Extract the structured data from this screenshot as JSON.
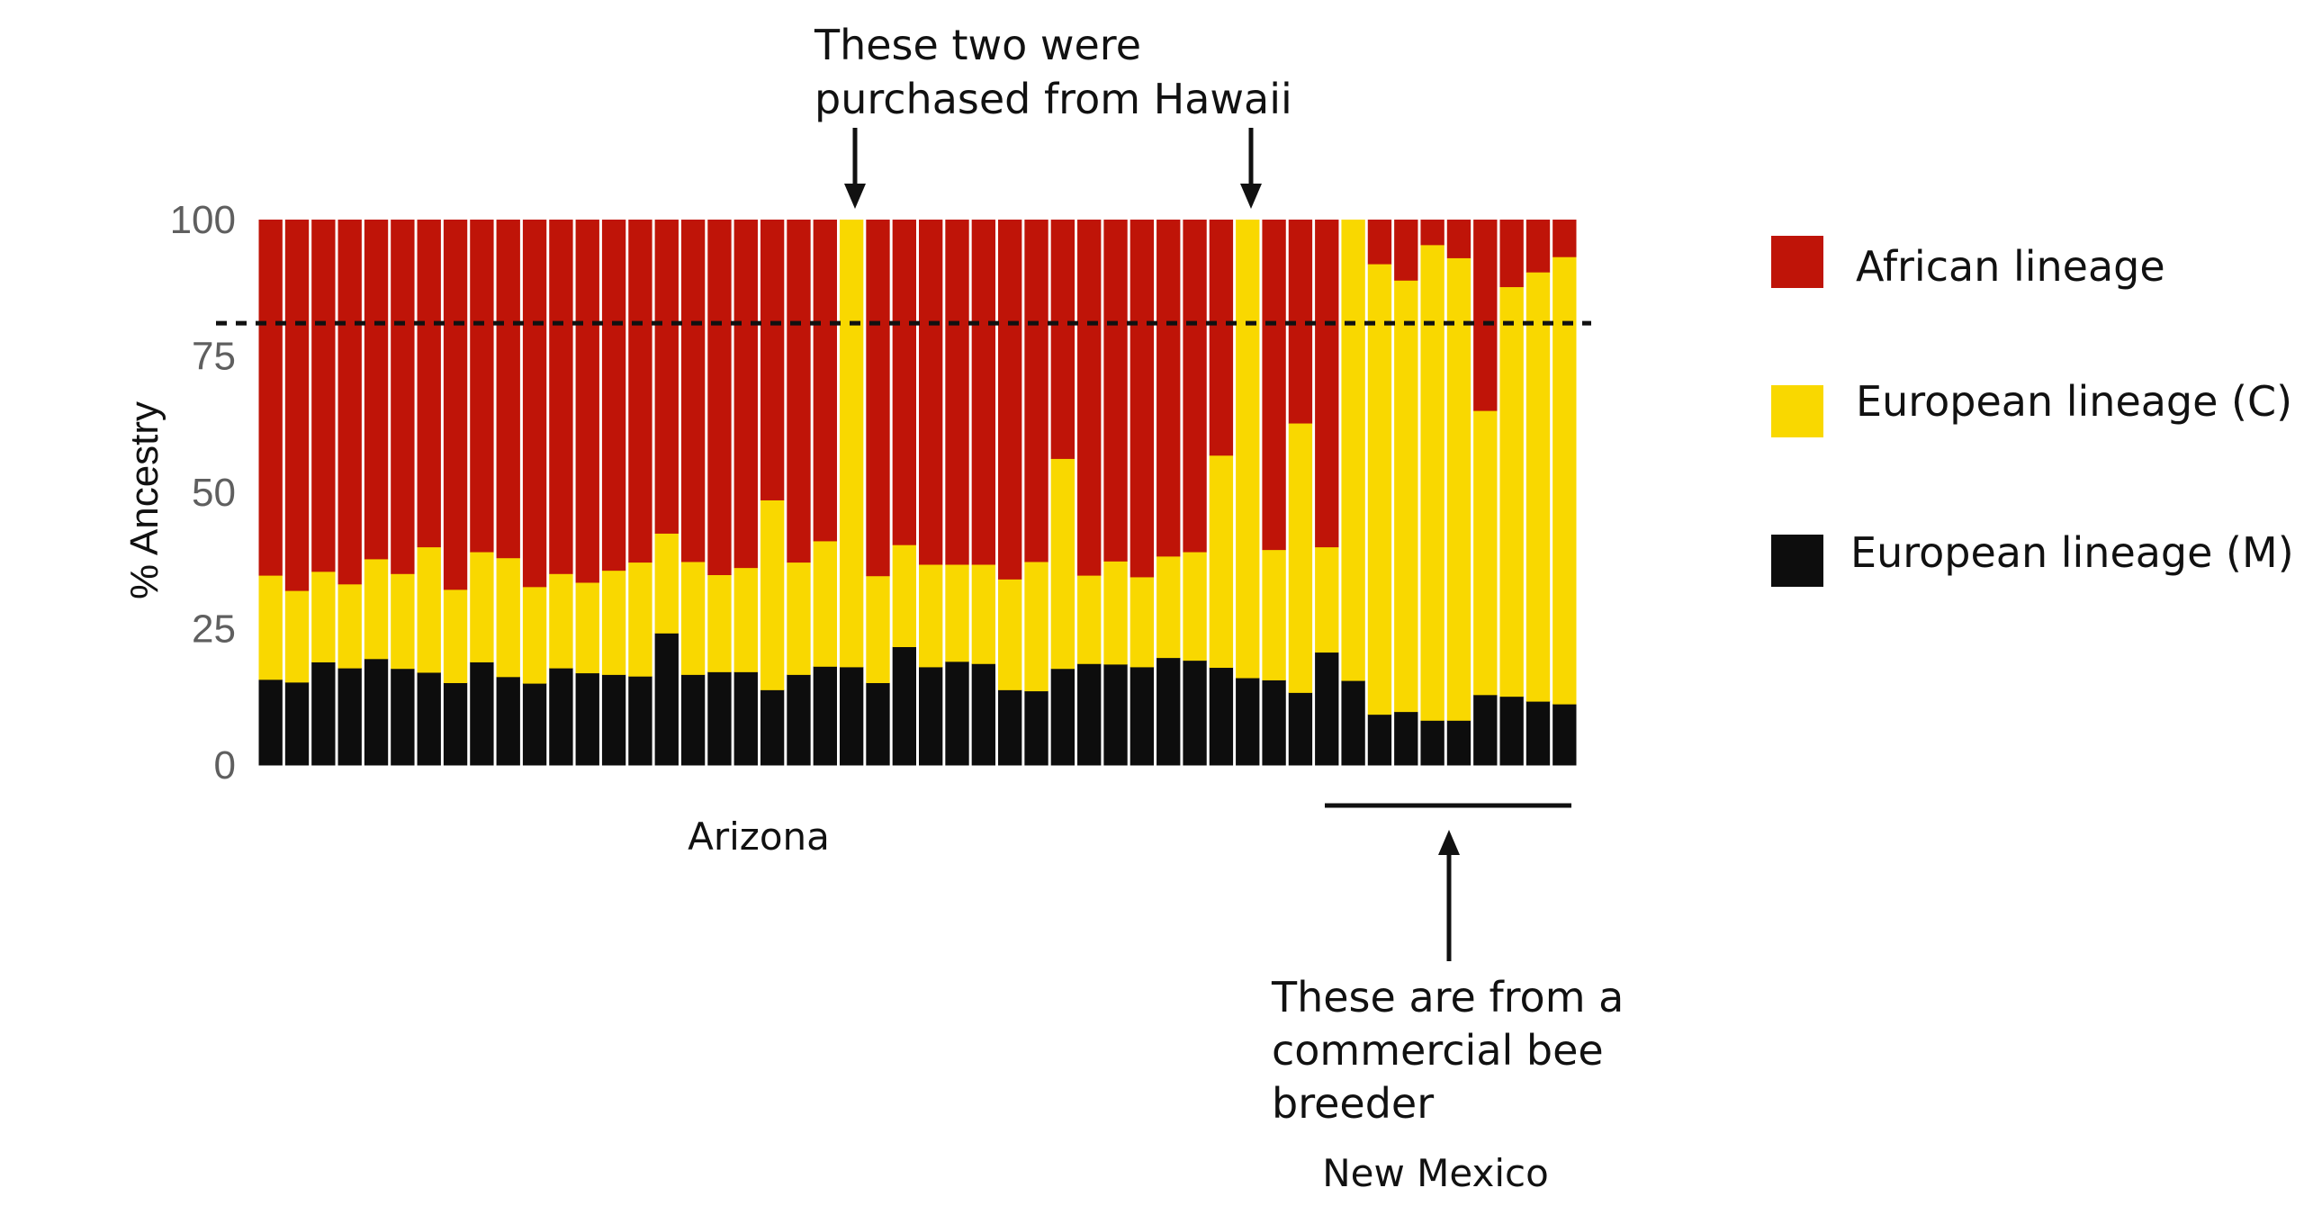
{
  "chart_data": {
    "type": "bar",
    "stacked": true,
    "title": "",
    "xlabel": "",
    "ylabel": "% Ancestry",
    "ylim": [
      0,
      100
    ],
    "yticks": [
      0,
      25,
      50,
      75,
      100
    ],
    "threshold_line": 81,
    "colors": {
      "african": "#bf1408",
      "european_c": "#f9d800",
      "european_m": "#0d0d0d",
      "separator": "#ffffff"
    },
    "series": [
      {
        "name": "African lineage",
        "color": "#bf1408",
        "values": [
          65.2,
          68.0,
          64.5,
          66.8,
          62.2,
          64.9,
          60.0,
          67.8,
          60.9,
          62.0,
          67.3,
          64.9,
          66.5,
          64.3,
          62.8,
          57.5,
          62.7,
          65.1,
          63.8,
          51.4,
          62.8,
          58.9,
          0,
          65.3,
          59.6,
          63.2,
          63.2,
          63.2,
          65.9,
          62.7,
          43.8,
          65.2,
          62.6,
          65.5,
          61.7,
          60.9,
          43.2,
          0,
          60.5,
          37.3,
          60.0,
          0,
          8.1,
          11.1,
          4.6,
          7.0,
          35.0,
          12.3,
          9.6,
          6.8
        ]
      },
      {
        "name": "European lineage (C)",
        "color": "#f9d800",
        "values": [
          19.1,
          16.8,
          16.6,
          15.4,
          18.3,
          17.4,
          23.0,
          17.1,
          20.2,
          21.8,
          17.7,
          17.3,
          16.6,
          19.1,
          20.9,
          18.3,
          20.7,
          17.8,
          19.1,
          34.8,
          20.6,
          23.0,
          82.0,
          19.6,
          18.7,
          18.8,
          17.8,
          18.2,
          20.3,
          23.7,
          38.5,
          16.2,
          18.9,
          16.5,
          18.6,
          19.9,
          38.9,
          84.0,
          23.9,
          49.4,
          19.3,
          84.5,
          82.6,
          79.1,
          87.2,
          84.8,
          52.1,
          75.1,
          78.7,
          82.0
        ]
      },
      {
        "name": "European lineage (M)",
        "color": "#0d0d0d",
        "values": [
          15.7,
          15.2,
          18.9,
          17.8,
          19.5,
          17.7,
          17.0,
          15.1,
          18.9,
          16.2,
          15.0,
          17.8,
          16.9,
          16.6,
          16.3,
          24.2,
          16.6,
          17.1,
          17.1,
          13.8,
          16.6,
          18.1,
          18.0,
          15.1,
          21.7,
          18.0,
          19.0,
          18.6,
          13.8,
          13.6,
          17.7,
          18.6,
          18.5,
          18.0,
          19.7,
          19.2,
          17.9,
          16.0,
          15.6,
          13.3,
          20.7,
          15.5,
          9.3,
          9.8,
          8.2,
          8.2,
          12.9,
          12.6,
          11.7,
          11.2
        ]
      }
    ],
    "group_labels": [
      "Arizona",
      "New Mexico"
    ],
    "annotations": {
      "hawaii": [
        "These two were",
        "purchased from Hawaii"
      ],
      "breeder": [
        "These are from a",
        "commercial bee",
        "breeder"
      ]
    }
  }
}
